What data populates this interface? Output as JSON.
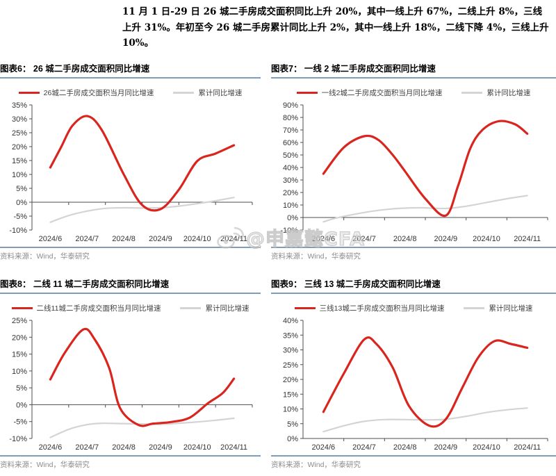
{
  "header": {
    "paragraph": "11 月 1 日-29 日 26 城二手房成交面积同比上升 20%，其中一线上升 67%，二线上升 8%，三线上升 31%。年初至今 26 城二手房累计同比上升 2%，其中一线上升 18%，二线下降 4%，三线上升 10%。"
  },
  "watermark": {
    "text": "@申嘉懿CFA",
    "icon": "weibo-icon"
  },
  "colors": {
    "series_red": "#d9251d",
    "series_gray": "#d4d4d4",
    "accent_blue": "#7f9db9",
    "axis": "#4d4d4d"
  },
  "chart_data": [
    {
      "id": "fig6",
      "type": "line",
      "heading": "图表6：  26 城二手房成交面积同比增速",
      "source": "资料来源：Wind，华泰研究",
      "x_labels": [
        "2024/6",
        "2024/7",
        "2024/8",
        "2024/9",
        "2024/10",
        "2024/11"
      ],
      "xlim": [
        5.5,
        11.5
      ],
      "ylim": [
        -10,
        35
      ],
      "ytick_step": 5,
      "grid": false,
      "legend_position": "top-center",
      "series": [
        {
          "name": "26城二手房成交面积当月同比增速",
          "color_key": "series_red",
          "x": [
            6,
            6.3,
            6.6,
            7,
            7.4,
            8,
            8.5,
            9,
            9.5,
            10,
            10.5,
            11
          ],
          "values": [
            12.5,
            20,
            27.5,
            31,
            26,
            10,
            -1,
            -2.5,
            4.5,
            14.8,
            17.5,
            20.5
          ]
        },
        {
          "name": "累计同比增速",
          "color_key": "series_gray",
          "x": [
            6,
            6.5,
            7,
            7.5,
            8,
            8.5,
            9,
            9.5,
            10,
            10.5,
            11
          ],
          "values": [
            -7.2,
            -4.8,
            -3.2,
            -2.2,
            -2.0,
            -2.1,
            -2.0,
            -1.4,
            -0.5,
            0.5,
            1.7
          ]
        }
      ]
    },
    {
      "id": "fig7",
      "type": "line",
      "heading": "图表7：  一线 2 城二手房成交面积同比增速",
      "source": "资料来源：Wind，华泰研究",
      "x_labels": [
        "2024/6",
        "2024/7",
        "2024/8",
        "2024/9",
        "2024/10",
        "2024/11"
      ],
      "xlim": [
        5.5,
        11.5
      ],
      "ylim": [
        -10,
        90
      ],
      "ytick_step": 10,
      "grid": false,
      "legend_position": "top-center",
      "series": [
        {
          "name": "一线2城二手房成交面积当月同比增速",
          "color_key": "series_red",
          "x": [
            6,
            6.5,
            7,
            7.35,
            7.7,
            8,
            8.5,
            9,
            9.3,
            9.6,
            9.9,
            10.3,
            10.7,
            11
          ],
          "values": [
            35,
            56,
            65,
            62,
            50,
            37,
            15,
            1.5,
            25,
            55,
            70,
            77,
            74.5,
            67
          ]
        },
        {
          "name": "累计同比增速",
          "color_key": "series_gray",
          "x": [
            6,
            6.3,
            7,
            7.5,
            8,
            8.4,
            9,
            9.5,
            10,
            10.5,
            11
          ],
          "values": [
            -3.5,
            -0.5,
            4,
            6.3,
            7.5,
            7.8,
            7.2,
            9,
            12,
            15,
            17.5
          ]
        }
      ]
    },
    {
      "id": "fig8",
      "type": "line",
      "heading": "图表8：  二线 11 城二手房成交面积同比增速",
      "source": "资料来源：Wind，华泰研究",
      "x_labels": [
        "2024/6",
        "2024/7",
        "2024/8",
        "2024/9",
        "2024/10",
        "2024/11"
      ],
      "xlim": [
        5.5,
        11.5
      ],
      "ylim": [
        -10,
        25
      ],
      "ytick_step": 5,
      "grid": false,
      "legend_position": "top-center",
      "series": [
        {
          "name": "二线11城二手房成交面积当月同比增速",
          "color_key": "series_red",
          "x": [
            6,
            6.4,
            6.9,
            7.2,
            7.6,
            7.9,
            8.4,
            8.8,
            9.3,
            9.8,
            10.3,
            10.7,
            11
          ],
          "values": [
            7.5,
            15.5,
            22.3,
            19.5,
            11,
            -1,
            -6,
            -5.6,
            -5.1,
            -3.8,
            0.5,
            3.5,
            7.7
          ]
        },
        {
          "name": "累计同比增速",
          "color_key": "series_gray",
          "x": [
            6,
            6.5,
            7,
            7.4,
            8,
            8.5,
            9,
            9.5,
            10,
            10.5,
            11
          ],
          "values": [
            -9.7,
            -7.3,
            -5.9,
            -5.5,
            -5.6,
            -5.7,
            -5.8,
            -5.5,
            -5.1,
            -4.6,
            -4.0
          ]
        }
      ]
    },
    {
      "id": "fig9",
      "type": "line",
      "heading": "图表9：  三线 13 城二手房成交面积同比增速",
      "source": "资料来源：Wind，华泰研究",
      "x_labels": [
        "2024/6",
        "2024/7",
        "2024/8",
        "2024/9",
        "2024/10",
        "2024/11"
      ],
      "xlim": [
        5.5,
        11.5
      ],
      "ylim": [
        0,
        40
      ],
      "ytick_step": 5,
      "grid": false,
      "legend_position": "top-center",
      "series": [
        {
          "name": "三线13城二手房成交面积当月同比增速",
          "color_key": "series_red",
          "x": [
            6,
            6.5,
            7,
            7.3,
            7.7,
            8.1,
            8.6,
            9,
            9.4,
            9.8,
            10.2,
            10.6,
            11
          ],
          "values": [
            9,
            22,
            33.5,
            32,
            24,
            11,
            4.3,
            6.5,
            17,
            27.5,
            33,
            32,
            30.7
          ]
        },
        {
          "name": "累计同比增速",
          "color_key": "series_gray",
          "x": [
            6,
            6.5,
            7,
            7.5,
            8,
            8.5,
            9,
            9.5,
            10,
            10.5,
            11
          ],
          "values": [
            2.3,
            4.3,
            5.8,
            6.4,
            6.4,
            6.3,
            6.5,
            7.5,
            8.8,
            9.7,
            10.3
          ]
        }
      ]
    }
  ]
}
